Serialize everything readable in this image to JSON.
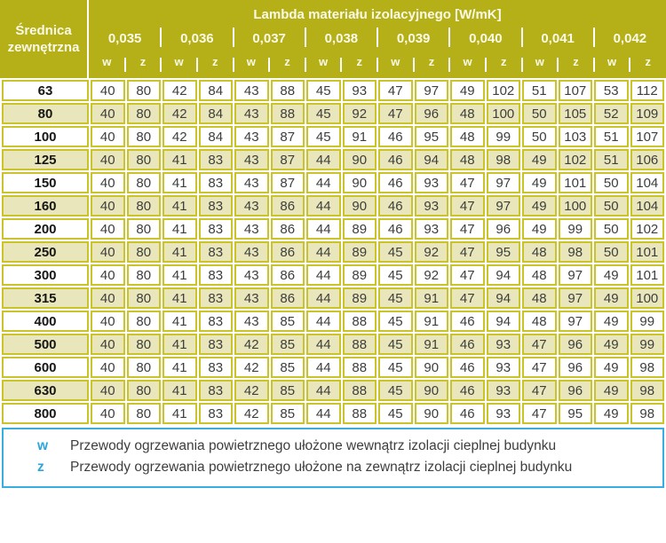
{
  "table": {
    "corner_header_line1": "Średnica",
    "corner_header_line2": "zewnętrzna",
    "title": "Lambda materiału izolacyjnego [W/mK]",
    "lambda_values": [
      "0,035",
      "0,036",
      "0,037",
      "0,038",
      "0,039",
      "0,040",
      "0,041",
      "0,042"
    ],
    "sub_headers": [
      "w",
      "z"
    ],
    "rows": [
      {
        "diameter": "63",
        "values": [
          40,
          80,
          42,
          84,
          43,
          88,
          45,
          93,
          47,
          97,
          49,
          102,
          51,
          107,
          53,
          112
        ]
      },
      {
        "diameter": "80",
        "values": [
          40,
          80,
          42,
          84,
          43,
          88,
          45,
          92,
          47,
          96,
          48,
          100,
          50,
          105,
          52,
          109
        ]
      },
      {
        "diameter": "100",
        "values": [
          40,
          80,
          42,
          84,
          43,
          87,
          45,
          91,
          46,
          95,
          48,
          99,
          50,
          103,
          51,
          107
        ]
      },
      {
        "diameter": "125",
        "values": [
          40,
          80,
          41,
          83,
          43,
          87,
          44,
          90,
          46,
          94,
          48,
          98,
          49,
          102,
          51,
          106
        ]
      },
      {
        "diameter": "150",
        "values": [
          40,
          80,
          41,
          83,
          43,
          87,
          44,
          90,
          46,
          93,
          47,
          97,
          49,
          101,
          50,
          104
        ]
      },
      {
        "diameter": "160",
        "values": [
          40,
          80,
          41,
          83,
          43,
          86,
          44,
          90,
          46,
          93,
          47,
          97,
          49,
          100,
          50,
          104
        ]
      },
      {
        "diameter": "200",
        "values": [
          40,
          80,
          41,
          83,
          43,
          86,
          44,
          89,
          46,
          93,
          47,
          96,
          49,
          99,
          50,
          102
        ]
      },
      {
        "diameter": "250",
        "values": [
          40,
          80,
          41,
          83,
          43,
          86,
          44,
          89,
          45,
          92,
          47,
          95,
          48,
          98,
          50,
          101
        ]
      },
      {
        "diameter": "300",
        "values": [
          40,
          80,
          41,
          83,
          43,
          86,
          44,
          89,
          45,
          92,
          47,
          94,
          48,
          97,
          49,
          101
        ]
      },
      {
        "diameter": "315",
        "values": [
          40,
          80,
          41,
          83,
          43,
          86,
          44,
          89,
          45,
          91,
          47,
          94,
          48,
          97,
          49,
          100
        ]
      },
      {
        "diameter": "400",
        "values": [
          40,
          80,
          41,
          83,
          43,
          85,
          44,
          88,
          45,
          91,
          46,
          94,
          48,
          97,
          49,
          99
        ]
      },
      {
        "diameter": "500",
        "values": [
          40,
          80,
          41,
          83,
          42,
          85,
          44,
          88,
          45,
          91,
          46,
          93,
          47,
          96,
          49,
          99
        ]
      },
      {
        "diameter": "600",
        "values": [
          40,
          80,
          41,
          83,
          42,
          85,
          44,
          88,
          45,
          90,
          46,
          93,
          47,
          96,
          49,
          98
        ]
      },
      {
        "diameter": "630",
        "values": [
          40,
          80,
          41,
          83,
          42,
          85,
          44,
          88,
          45,
          90,
          46,
          93,
          47,
          96,
          49,
          98
        ]
      },
      {
        "diameter": "800",
        "values": [
          40,
          80,
          41,
          83,
          42,
          85,
          44,
          88,
          45,
          90,
          46,
          93,
          47,
          95,
          49,
          98
        ]
      }
    ]
  },
  "legend": {
    "items": [
      {
        "symbol": "w",
        "text": "Przewody ogrzewania powietrznego ułożone wewnątrz izolacji cieplnej budynku"
      },
      {
        "symbol": "z",
        "text": "Przewody ogrzewania powietrznego ułożone na zewnątrz izolacji cieplnej budynku"
      }
    ]
  },
  "colors": {
    "header_bg": "#b5b017",
    "header_text": "#fbfae9",
    "cell_border": "#cbc428",
    "row_alt_bg": "#e9e6bb",
    "body_text": "#3e3e3e",
    "label_text": "#161616",
    "legend_border": "#3aade0",
    "legend_symbol": "#2aa6dc"
  }
}
